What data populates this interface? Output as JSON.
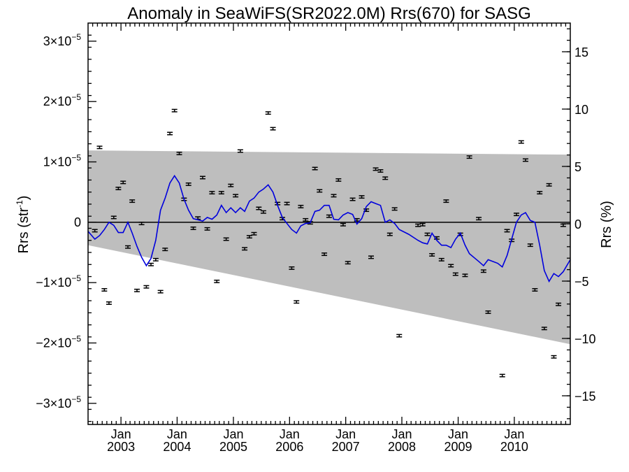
{
  "chart_data": {
    "type": "scatter",
    "title": "Anomaly in SeaWiFS(SR2022.0M) Rrs(670) for SASG",
    "ylabel_left": "Rrs (str",
    "ylabel_left_sup": "-1",
    "ylabel_left_end": ")",
    "ylabel_right": "Rrs (%)",
    "x_range": [
      "2002-06-01",
      "2010-12-31"
    ],
    "ylim_left": [
      -3.35e-05,
      3.3e-05
    ],
    "ylim_right": [
      -17.5,
      17.5
    ],
    "x_ticks": [
      {
        "top": "Jan",
        "bottom": "2003",
        "date": "2003-01-01"
      },
      {
        "top": "Jan",
        "bottom": "2004",
        "date": "2004-01-01"
      },
      {
        "top": "Jan",
        "bottom": "2005",
        "date": "2005-01-01"
      },
      {
        "top": "Jan",
        "bottom": "2006",
        "date": "2006-01-01"
      },
      {
        "top": "Jan",
        "bottom": "2007",
        "date": "2007-01-01"
      },
      {
        "top": "Jan",
        "bottom": "2008",
        "date": "2008-01-01"
      },
      {
        "top": "Jan",
        "bottom": "2009",
        "date": "2009-01-01"
      },
      {
        "top": "Jan",
        "bottom": "2010",
        "date": "2010-01-01"
      }
    ],
    "y_ticks_left": [
      {
        "mant": "3×10",
        "exp": "−5",
        "value": 3e-05
      },
      {
        "mant": "2×10",
        "exp": "−5",
        "value": 2e-05
      },
      {
        "mant": "1×10",
        "exp": "−5",
        "value": 1e-05
      },
      {
        "mant": "0",
        "exp": "",
        "value": 0
      },
      {
        "mant": "−1×10",
        "exp": "−5",
        "value": -1e-05
      },
      {
        "mant": "−2×10",
        "exp": "−5",
        "value": -2e-05
      },
      {
        "mant": "−3×10",
        "exp": "−5",
        "value": -3e-05
      }
    ],
    "y_ticks_right": [
      {
        "label": "15",
        "value": 15
      },
      {
        "label": "10",
        "value": 10
      },
      {
        "label": "5",
        "value": 5
      },
      {
        "label": "0",
        "value": 0
      },
      {
        "label": "−5",
        "value": -5
      },
      {
        "label": "−10",
        "value": -10
      },
      {
        "label": "−15",
        "value": -15
      }
    ],
    "band": {
      "x": [
        "2002-06-01",
        "2010-12-31"
      ],
      "upper": [
        1.19e-05,
        1.12e-05
      ],
      "lower": [
        -3.8e-06,
        -2.02e-05
      ],
      "color": "#bebebe"
    },
    "points": [
      {
        "x": "2002-07-15",
        "y": -1.4e-06
      },
      {
        "x": "2002-08-15",
        "y": 1.24e-05
      },
      {
        "x": "2002-09-15",
        "y": -1.12e-05
      },
      {
        "x": "2002-10-15",
        "y": -1.34e-05
      },
      {
        "x": "2002-11-15",
        "y": 8e-07
      },
      {
        "x": "2002-12-15",
        "y": 5.6e-06
      },
      {
        "x": "2003-01-15",
        "y": 6.6e-06
      },
      {
        "x": "2003-02-15",
        "y": -4.1e-06
      },
      {
        "x": "2003-03-15",
        "y": 3.5e-06
      },
      {
        "x": "2003-04-15",
        "y": -1.13e-05
      },
      {
        "x": "2003-05-15",
        "y": -2e-07
      },
      {
        "x": "2003-06-15",
        "y": -1.07e-05
      },
      {
        "x": "2003-07-15",
        "y": -7e-06
      },
      {
        "x": "2003-08-15",
        "y": -6.2e-06
      },
      {
        "x": "2003-09-15",
        "y": -1.15e-05
      },
      {
        "x": "2003-10-15",
        "y": -4.5e-06
      },
      {
        "x": "2003-11-15",
        "y": 1.47e-05
      },
      {
        "x": "2003-12-15",
        "y": 1.85e-05
      },
      {
        "x": "2004-01-15",
        "y": 1.14e-05
      },
      {
        "x": "2004-02-15",
        "y": 3.8e-06
      },
      {
        "x": "2004-03-15",
        "y": 6.3e-06
      },
      {
        "x": "2004-04-15",
        "y": -1e-06
      },
      {
        "x": "2004-05-15",
        "y": 7e-07
      },
      {
        "x": "2004-06-15",
        "y": 7.4e-06
      },
      {
        "x": "2004-07-15",
        "y": -1.1e-06
      },
      {
        "x": "2004-08-15",
        "y": 4.9e-06
      },
      {
        "x": "2004-09-15",
        "y": -9.8e-06
      },
      {
        "x": "2004-10-15",
        "y": 4.9e-06
      },
      {
        "x": "2004-11-15",
        "y": -2.8e-06
      },
      {
        "x": "2004-12-15",
        "y": 6.1e-06
      },
      {
        "x": "2005-01-15",
        "y": 4.4e-06
      },
      {
        "x": "2005-02-15",
        "y": 1.18e-05
      },
      {
        "x": "2005-03-15",
        "y": -4.4e-06
      },
      {
        "x": "2005-04-15",
        "y": -2.4e-06
      },
      {
        "x": "2005-05-15",
        "y": -1.9e-06
      },
      {
        "x": "2005-06-15",
        "y": 2.3e-06
      },
      {
        "x": "2005-07-15",
        "y": 1.7e-06
      },
      {
        "x": "2005-08-15",
        "y": 1.81e-05
      },
      {
        "x": "2005-09-15",
        "y": 1.55e-05
      },
      {
        "x": "2005-10-15",
        "y": 3.1e-06
      },
      {
        "x": "2005-11-15",
        "y": 6e-07
      },
      {
        "x": "2005-12-15",
        "y": 3.1e-06
      },
      {
        "x": "2006-01-15",
        "y": -7.6e-06
      },
      {
        "x": "2006-02-15",
        "y": -1.32e-05
      },
      {
        "x": "2006-03-15",
        "y": 2.6e-06
      },
      {
        "x": "2006-04-15",
        "y": 4e-07
      },
      {
        "x": "2006-05-15",
        "y": -1e-07
      },
      {
        "x": "2006-06-15",
        "y": 8.9e-06
      },
      {
        "x": "2006-07-15",
        "y": 5.2e-06
      },
      {
        "x": "2006-08-15",
        "y": -5.3e-06
      },
      {
        "x": "2006-09-15",
        "y": 1e-06
      },
      {
        "x": "2006-10-15",
        "y": 4.4e-06
      },
      {
        "x": "2006-11-15",
        "y": 7e-06
      },
      {
        "x": "2006-12-15",
        "y": -4e-07
      },
      {
        "x": "2007-01-15",
        "y": -6.7e-06
      },
      {
        "x": "2007-02-15",
        "y": 3.8e-06
      },
      {
        "x": "2007-03-15",
        "y": 4e-07
      },
      {
        "x": "2007-04-15",
        "y": 4.2e-06
      },
      {
        "x": "2007-05-15",
        "y": 2e-06
      },
      {
        "x": "2007-06-15",
        "y": -5.8e-06
      },
      {
        "x": "2007-07-15",
        "y": 8.8e-06
      },
      {
        "x": "2007-08-15",
        "y": 8.5e-06
      },
      {
        "x": "2007-09-15",
        "y": 7.3e-06
      },
      {
        "x": "2007-10-15",
        "y": -2e-06
      },
      {
        "x": "2007-11-15",
        "y": 2.2e-06
      },
      {
        "x": "2007-12-15",
        "y": -1.88e-05
      },
      {
        "x": "2008-04-15",
        "y": -5e-07
      },
      {
        "x": "2008-05-15",
        "y": -4e-07
      },
      {
        "x": "2008-06-15",
        "y": -2e-06
      },
      {
        "x": "2008-07-15",
        "y": -5.4e-06
      },
      {
        "x": "2008-08-15",
        "y": -2.6e-06
      },
      {
        "x": "2008-09-15",
        "y": -6.2e-06
      },
      {
        "x": "2008-10-15",
        "y": 3.5e-06
      },
      {
        "x": "2008-11-15",
        "y": -7.2e-06
      },
      {
        "x": "2008-12-15",
        "y": -8.6e-06
      },
      {
        "x": "2009-01-15",
        "y": -2e-06
      },
      {
        "x": "2009-02-15",
        "y": -8.8e-06
      },
      {
        "x": "2009-03-15",
        "y": 1.08e-05
      },
      {
        "x": "2009-05-15",
        "y": 6e-07
      },
      {
        "x": "2009-06-15",
        "y": -8.1e-06
      },
      {
        "x": "2009-07-15",
        "y": -1.49e-05
      },
      {
        "x": "2009-10-15",
        "y": -2.54e-05
      },
      {
        "x": "2009-11-15",
        "y": -1.4e-06
      },
      {
        "x": "2009-12-15",
        "y": -3e-06
      },
      {
        "x": "2010-01-15",
        "y": 1.3e-06
      },
      {
        "x": "2010-02-15",
        "y": 1.33e-05
      },
      {
        "x": "2010-03-15",
        "y": 1.03e-05
      },
      {
        "x": "2010-04-15",
        "y": -3.8e-06
      },
      {
        "x": "2010-05-15",
        "y": -1.12e-05
      },
      {
        "x": "2010-06-15",
        "y": 4.9e-06
      },
      {
        "x": "2010-07-15",
        "y": -1.76e-05
      },
      {
        "x": "2010-08-15",
        "y": 6.2e-06
      },
      {
        "x": "2010-09-15",
        "y": -2.23e-05
      },
      {
        "x": "2010-10-15",
        "y": -1.36e-05
      },
      {
        "x": "2010-11-15",
        "y": -5e-07
      }
    ],
    "error_bar": 2e-07,
    "line": {
      "color": "#0000dd",
      "x": [
        "2002-06-01",
        "2002-07-15",
        "2002-08-15",
        "2002-09-15",
        "2002-10-15",
        "2002-11-15",
        "2002-12-15",
        "2003-01-15",
        "2003-02-15",
        "2003-03-15",
        "2003-04-15",
        "2003-05-15",
        "2003-06-15",
        "2003-07-15",
        "2003-08-15",
        "2003-09-15",
        "2003-10-15",
        "2003-11-15",
        "2003-12-15",
        "2004-01-15",
        "2004-02-15",
        "2004-03-15",
        "2004-04-15",
        "2004-05-15",
        "2004-06-15",
        "2004-07-15",
        "2004-08-15",
        "2004-09-15",
        "2004-10-15",
        "2004-11-15",
        "2004-12-15",
        "2005-01-15",
        "2005-02-15",
        "2005-03-15",
        "2005-04-15",
        "2005-05-15",
        "2005-06-15",
        "2005-07-15",
        "2005-08-15",
        "2005-09-15",
        "2005-10-15",
        "2005-11-15",
        "2005-12-15",
        "2006-01-15",
        "2006-02-15",
        "2006-03-15",
        "2006-04-15",
        "2006-05-15",
        "2006-06-15",
        "2006-07-15",
        "2006-08-15",
        "2006-09-15",
        "2006-10-15",
        "2006-11-15",
        "2006-12-15",
        "2007-01-15",
        "2007-02-15",
        "2007-03-15",
        "2007-04-15",
        "2007-05-15",
        "2007-06-15",
        "2007-07-15",
        "2007-08-15",
        "2007-09-15",
        "2007-10-15",
        "2007-11-15",
        "2007-12-15",
        "2008-02-15",
        "2008-04-15",
        "2008-05-15",
        "2008-06-15",
        "2008-07-15",
        "2008-08-15",
        "2008-09-15",
        "2008-10-15",
        "2008-11-15",
        "2008-12-15",
        "2009-01-15",
        "2009-02-15",
        "2009-03-15",
        "2009-05-15",
        "2009-06-15",
        "2009-07-15",
        "2009-09-15",
        "2009-10-15",
        "2009-11-15",
        "2009-12-15",
        "2010-01-15",
        "2010-02-15",
        "2010-03-15",
        "2010-04-15",
        "2010-05-15",
        "2010-06-15",
        "2010-07-15",
        "2010-08-15",
        "2010-09-15",
        "2010-10-15",
        "2010-11-15",
        "2010-12-31"
      ],
      "y": [
        -1.5e-06,
        -2.8e-06,
        -2.2e-06,
        -1.2e-06,
        0.0,
        -5e-07,
        -1.7e-06,
        -1.7e-06,
        0.0,
        -1.8e-06,
        -4e-06,
        -5.8e-06,
        -7.2e-06,
        -6e-06,
        -3e-06,
        2e-06,
        4e-06,
        6.5e-06,
        7.7e-06,
        6.5e-06,
        3.8e-06,
        2e-06,
        6e-07,
        4e-07,
        2e-07,
        8e-07,
        5e-07,
        1.2e-06,
        2.8e-06,
        1.6e-06,
        2.4e-06,
        1.6e-06,
        2.4e-06,
        1.8e-06,
        3.5e-06,
        4e-06,
        5e-06,
        5.5e-06,
        6.2e-06,
        5e-06,
        2.8e-06,
        8e-07,
        -2e-07,
        -1.2e-06,
        -1.8e-06,
        -6e-07,
        -2e-07,
        -1e-07,
        1.8e-06,
        2e-06,
        2.8e-06,
        2.8e-06,
        5e-07,
        4e-07,
        1.2e-06,
        1.6e-06,
        1.3e-06,
        -3e-07,
        6e-07,
        2.6e-06,
        3.4e-06,
        3.1e-06,
        2.8e-06,
        0.0,
        4e-07,
        -2e-07,
        -1.2e-06,
        -2e-06,
        -3e-06,
        -3.4e-06,
        -3.6e-06,
        -1.8e-06,
        -3e-06,
        -3.8e-06,
        -3.8e-06,
        -4.2e-06,
        -2.8e-06,
        -1.8e-06,
        -3.8e-06,
        -5.2e-06,
        -6.5e-06,
        -7.2e-06,
        -6.2e-06,
        -6.8e-06,
        -7.4e-06,
        -5.5e-06,
        -2.8e-06,
        0.0,
        1.2e-06,
        1.6e-06,
        3e-07,
        0.0,
        -3.8e-06,
        -8e-06,
        -9.8e-06,
        -8.5e-06,
        -9e-06,
        -8.2e-06,
        -6.2e-06
      ]
    }
  }
}
